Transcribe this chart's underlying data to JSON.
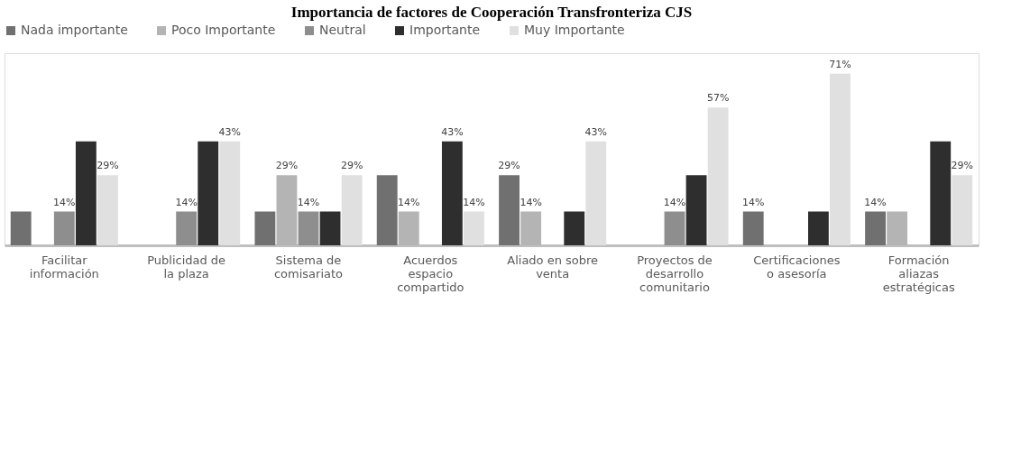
{
  "chart_data": {
    "type": "bar",
    "title": "Importancia de factores de Cooperación Transfronteriza CJS",
    "categories": [
      "Facilitar información",
      "Publicidad de la plaza",
      "Sistema de comisariato",
      "Acuerdos espacio compartido",
      "Aliado en sobre venta",
      "Proyectos de desarrollo comunitario",
      "Certificaciones o asesoría",
      "Formación aliazas estratégicas"
    ],
    "series": [
      {
        "name": "Nada importante",
        "color": "#707070",
        "values": [
          14,
          0,
          14,
          29,
          29,
          0,
          14,
          14
        ],
        "value_labels": [
          null,
          null,
          null,
          null,
          "29%",
          null,
          "14%",
          "14%"
        ]
      },
      {
        "name": "Poco Importante",
        "color": "#b4b4b4",
        "values": [
          0,
          0,
          29,
          14,
          14,
          0,
          0,
          14
        ],
        "value_labels": [
          null,
          null,
          "29%",
          "14%",
          "14%",
          null,
          null,
          null
        ]
      },
      {
        "name": "Neutral",
        "color": "#8e8e8e",
        "values": [
          14,
          14,
          14,
          0,
          0,
          14,
          0,
          0
        ],
        "value_labels": [
          "14%",
          "14%",
          "14%",
          null,
          null,
          "14%",
          null,
          null
        ]
      },
      {
        "name": "Importante",
        "color": "#2e2e2e",
        "values": [
          43,
          43,
          14,
          43,
          14,
          29,
          14,
          43
        ],
        "value_labels": [
          null,
          null,
          null,
          "43%",
          null,
          null,
          null,
          null
        ]
      },
      {
        "name": "Muy Importante",
        "color": "#e0e0e0",
        "values": [
          29,
          43,
          29,
          14,
          43,
          57,
          71,
          29
        ],
        "value_labels": [
          "29%",
          "43%",
          "29%",
          "14%",
          "43%",
          "57%",
          "71%",
          "29%"
        ]
      }
    ],
    "legend": "top",
    "grid": false
  }
}
